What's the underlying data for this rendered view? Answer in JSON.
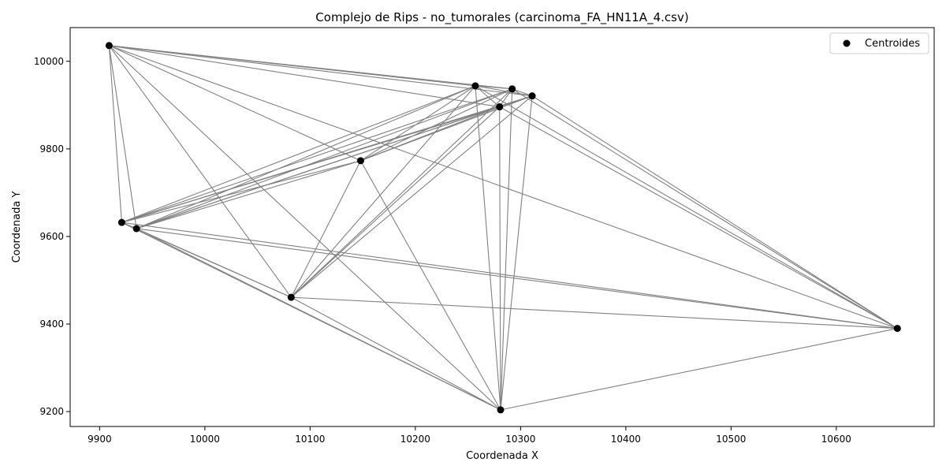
{
  "chart_data": {
    "type": "scatter",
    "title": "Complejo de Rips - no_tumorales (carcinoma_FA_HN11A_4.csv)",
    "xlabel": "Coordenada X",
    "ylabel": "Coordenada Y",
    "xlim": [
      9872,
      10693
    ],
    "ylim": [
      9166,
      10077
    ],
    "xticks": [
      9900,
      10000,
      10100,
      10200,
      10300,
      10400,
      10500,
      10600
    ],
    "yticks": [
      9200,
      9400,
      9600,
      9800,
      10000
    ],
    "grid": false,
    "legend": {
      "position": "top-right",
      "entries": [
        "Centroides"
      ]
    },
    "colors": {
      "points": "#000000",
      "edges": "#808080"
    },
    "points": [
      {
        "x": 9909,
        "y": 10036
      },
      {
        "x": 10257,
        "y": 9944
      },
      {
        "x": 10292,
        "y": 9937
      },
      {
        "x": 10311,
        "y": 9921
      },
      {
        "x": 10280,
        "y": 9896
      },
      {
        "x": 10148,
        "y": 9773
      },
      {
        "x": 9921,
        "y": 9632
      },
      {
        "x": 9935,
        "y": 9618
      },
      {
        "x": 10082,
        "y": 9461
      },
      {
        "x": 10658,
        "y": 9390
      },
      {
        "x": 10281,
        "y": 9204
      }
    ],
    "edges": [
      [
        0,
        1
      ],
      [
        0,
        2
      ],
      [
        0,
        3
      ],
      [
        0,
        4
      ],
      [
        0,
        5
      ],
      [
        0,
        6
      ],
      [
        0,
        7
      ],
      [
        0,
        8
      ],
      [
        0,
        9
      ],
      [
        0,
        10
      ],
      [
        1,
        2
      ],
      [
        1,
        3
      ],
      [
        1,
        4
      ],
      [
        1,
        5
      ],
      [
        1,
        6
      ],
      [
        1,
        7
      ],
      [
        1,
        8
      ],
      [
        1,
        9
      ],
      [
        1,
        10
      ],
      [
        2,
        3
      ],
      [
        2,
        4
      ],
      [
        2,
        5
      ],
      [
        2,
        6
      ],
      [
        2,
        7
      ],
      [
        2,
        8
      ],
      [
        2,
        9
      ],
      [
        2,
        10
      ],
      [
        3,
        4
      ],
      [
        3,
        5
      ],
      [
        3,
        6
      ],
      [
        3,
        7
      ],
      [
        3,
        8
      ],
      [
        3,
        9
      ],
      [
        3,
        10
      ],
      [
        4,
        5
      ],
      [
        4,
        6
      ],
      [
        4,
        7
      ],
      [
        4,
        8
      ],
      [
        4,
        9
      ],
      [
        4,
        10
      ],
      [
        5,
        6
      ],
      [
        5,
        7
      ],
      [
        5,
        8
      ],
      [
        5,
        10
      ],
      [
        6,
        7
      ],
      [
        6,
        8
      ],
      [
        6,
        9
      ],
      [
        6,
        10
      ],
      [
        7,
        8
      ],
      [
        7,
        9
      ],
      [
        7,
        10
      ],
      [
        8,
        9
      ],
      [
        8,
        10
      ],
      [
        9,
        10
      ]
    ]
  }
}
